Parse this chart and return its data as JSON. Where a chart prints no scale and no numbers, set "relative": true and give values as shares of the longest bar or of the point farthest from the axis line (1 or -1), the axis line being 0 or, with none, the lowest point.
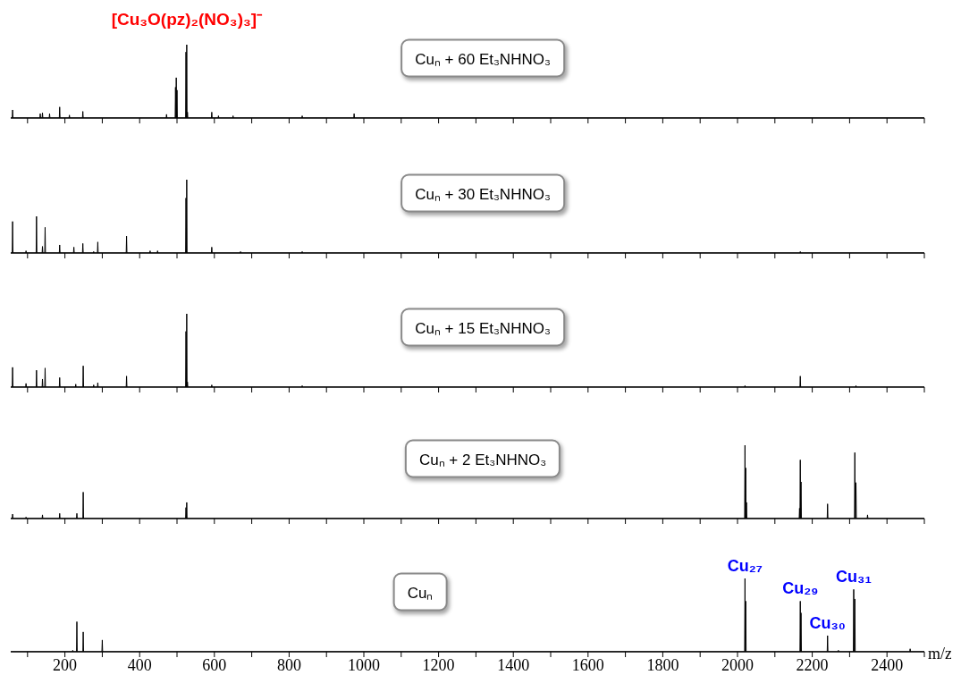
{
  "chart_data": [
    {
      "type": "line",
      "title": "Cuₙ + 60 Et₃NHNO₃",
      "color": "#000000",
      "relative": true,
      "tick_labels": false,
      "xlim": [
        55,
        2500
      ],
      "xticks": [
        100,
        200,
        300,
        400,
        500,
        600,
        700,
        800,
        900,
        1000,
        1100,
        1200,
        1300,
        1400,
        1500,
        1600,
        1700,
        1800,
        1900,
        2000,
        2100,
        2200,
        2300,
        2400,
        2500
      ],
      "annotations": [
        {
          "text": "[Cu₃O(pz)₂(NO₃)₃]⁻",
          "x": 526,
          "y": 1
        }
      ],
      "x": [
        55,
        59,
        60,
        61,
        133,
        134,
        135,
        139,
        140,
        141,
        158,
        159,
        160,
        185,
        186,
        187,
        211,
        212,
        213,
        247,
        248,
        249,
        471,
        472,
        473,
        495,
        496,
        497,
        498,
        499,
        500,
        501,
        523,
        524,
        525,
        526,
        527,
        528,
        529,
        592,
        593,
        594,
        610,
        611,
        612,
        649,
        650,
        651,
        834,
        835,
        836,
        973,
        974,
        975,
        2500
      ],
      "values": [
        0,
        0,
        0.11,
        0,
        0,
        0.06,
        0,
        0,
        0.07,
        0,
        0,
        0.06,
        0,
        0,
        0.15,
        0,
        0,
        0.04,
        0,
        0,
        0.09,
        0,
        0,
        0.05,
        0,
        0,
        0.42,
        0,
        0.55,
        0,
        0.38,
        0,
        0,
        0.9,
        0,
        1,
        0,
        0.08,
        0,
        0,
        0.08,
        0,
        0,
        0.03,
        0,
        0,
        0.03,
        0,
        0,
        0.03,
        0,
        0,
        0.06,
        0,
        0
      ]
    },
    {
      "type": "line",
      "title": "Cuₙ + 30 Et₃NHNO₃",
      "color": "#000000",
      "relative": true,
      "tick_labels": false,
      "xlim": [
        55,
        2500
      ],
      "xticks": [
        100,
        200,
        300,
        400,
        500,
        600,
        700,
        800,
        900,
        1000,
        1100,
        1200,
        1300,
        1400,
        1500,
        1600,
        1700,
        1800,
        1900,
        2000,
        2100,
        2200,
        2300,
        2400,
        2500
      ],
      "x": [
        55,
        59,
        60,
        61,
        95,
        96,
        97,
        123,
        124,
        125,
        139,
        140,
        141,
        146,
        147,
        148,
        185,
        186,
        187,
        223,
        224,
        225,
        247,
        248,
        249,
        276,
        277,
        278,
        287,
        288,
        289,
        364,
        365,
        366,
        427,
        428,
        429,
        447,
        448,
        449,
        523,
        524,
        525,
        526,
        527,
        592,
        593,
        594,
        669,
        670,
        671,
        834,
        835,
        836,
        2167,
        2168,
        2169,
        2500
      ],
      "values": [
        0,
        0,
        0.43,
        0,
        0,
        0.03,
        0,
        0,
        0.5,
        0,
        0,
        0.09,
        0,
        0,
        0.35,
        0,
        0,
        0.11,
        0,
        0,
        0.08,
        0,
        0,
        0.13,
        0,
        0,
        0.02,
        0,
        0,
        0.15,
        0,
        0,
        0.23,
        0,
        0,
        0.03,
        0,
        0,
        0.03,
        0,
        0,
        0.75,
        0,
        1,
        0,
        0,
        0.08,
        0,
        0,
        0.02,
        0,
        0,
        0.02,
        0,
        0,
        0.02,
        0,
        0
      ]
    },
    {
      "type": "line",
      "title": "Cuₙ + 15 Et₃NHNO₃",
      "color": "#000000",
      "relative": true,
      "tick_labels": false,
      "xlim": [
        55,
        2500
      ],
      "xticks": [
        100,
        200,
        300,
        400,
        500,
        600,
        700,
        800,
        900,
        1000,
        1100,
        1200,
        1300,
        1400,
        1500,
        1600,
        1700,
        1800,
        1900,
        2000,
        2100,
        2200,
        2300,
        2400,
        2500
      ],
      "x": [
        55,
        59,
        60,
        61,
        95,
        96,
        97,
        123,
        124,
        125,
        139,
        140,
        141,
        146,
        147,
        148,
        185,
        186,
        187,
        228,
        229,
        230,
        248,
        249,
        250,
        276,
        277,
        278,
        287,
        288,
        289,
        364,
        365,
        366,
        523,
        524,
        525,
        526,
        527,
        528,
        529,
        592,
        593,
        594,
        834,
        835,
        836,
        2019,
        2020,
        2021,
        2167,
        2168,
        2169,
        2316,
        2317,
        2318,
        2500
      ],
      "values": [
        0,
        0,
        0.27,
        0,
        0,
        0.05,
        0,
        0,
        0.23,
        0,
        0,
        0.11,
        0,
        0,
        0.26,
        0,
        0,
        0.13,
        0,
        0,
        0.04,
        0,
        0,
        0.29,
        0,
        0,
        0.03,
        0,
        0,
        0.06,
        0,
        0,
        0.15,
        0,
        0,
        0.76,
        0,
        1,
        0,
        0.07,
        0,
        0,
        0.03,
        0,
        0,
        0.02,
        0,
        0,
        0.02,
        0,
        0,
        0.15,
        0,
        0,
        0.02,
        0,
        0
      ]
    },
    {
      "type": "line",
      "title": "Cuₙ + 2 Et₃NHNO₃",
      "color": "#000000",
      "relative": true,
      "tick_labels": false,
      "xlim": [
        55,
        2500
      ],
      "xticks": [
        100,
        200,
        300,
        400,
        500,
        600,
        700,
        800,
        900,
        1000,
        1100,
        1200,
        1300,
        1400,
        1500,
        1600,
        1700,
        1800,
        1900,
        2000,
        2100,
        2200,
        2300,
        2400,
        2500
      ],
      "x": [
        55,
        59,
        60,
        61,
        95,
        96,
        97,
        139,
        140,
        141,
        185,
        186,
        187,
        231,
        232,
        233,
        248,
        249,
        250,
        523,
        524,
        525,
        526,
        527,
        2019,
        2020,
        2021,
        2022,
        2023,
        2024,
        2025,
        2165,
        2166,
        2167,
        2168,
        2169,
        2170,
        2171,
        2240,
        2241,
        2242,
        2313,
        2314,
        2315,
        2316,
        2317,
        2318,
        2347,
        2348,
        2349,
        2500
      ],
      "values": [
        0,
        0,
        0.06,
        0,
        0,
        0.02,
        0,
        0,
        0.05,
        0,
        0,
        0.07,
        0,
        0,
        0.07,
        0,
        0,
        0.36,
        0,
        0,
        0.15,
        0,
        0.22,
        0,
        0,
        1,
        0,
        0.69,
        0,
        0.22,
        0,
        0,
        0.14,
        0,
        0.8,
        0,
        0.5,
        0,
        0,
        0.2,
        0,
        0,
        0.9,
        0,
        0,
        0.49,
        0,
        0,
        0.05,
        0,
        0
      ]
    },
    {
      "type": "line",
      "title": "Cuₙ",
      "color": "#000000",
      "relative": true,
      "xlabel": "m/z",
      "xlim": [
        55,
        2500
      ],
      "xticks": [
        {
          "value": 100,
          "label": null
        },
        200,
        {
          "value": 300,
          "label": null
        },
        400,
        {
          "value": 500,
          "label": null
        },
        600,
        {
          "value": 700,
          "label": null
        },
        800,
        {
          "value": 900,
          "label": null
        },
        1000,
        {
          "value": 1100,
          "label": null
        },
        1200,
        {
          "value": 1300,
          "label": null
        },
        1400,
        {
          "value": 1500,
          "label": null
        },
        1600,
        {
          "value": 1700,
          "label": null
        },
        1800,
        {
          "value": 1900,
          "label": null
        },
        2000,
        {
          "value": 2100,
          "label": null
        },
        2200,
        {
          "value": 2300,
          "label": null
        },
        2400,
        {
          "value": 2500,
          "label": null
        }
      ],
      "annotations": [
        {
          "text": "Cu₂₇",
          "x": 2020,
          "y": 1
        },
        {
          "text": "Cu₂₉",
          "x": 2168,
          "y": 0.69
        },
        {
          "text": "Cu₃₀",
          "x": 2241,
          "y": 0.22
        },
        {
          "text": "Cu₃₁",
          "x": 2311,
          "y": 0.85
        }
      ],
      "x": [
        55,
        220,
        221,
        222,
        231,
        232,
        233,
        248,
        249,
        250,
        299,
        300,
        301,
        2019,
        2020,
        2021,
        2022,
        2023,
        2167,
        2168,
        2169,
        2170,
        2171,
        2240,
        2241,
        2242,
        2269,
        2270,
        2271,
        2310,
        2311,
        2312,
        2313,
        2314,
        2315,
        2461,
        2462,
        2463,
        2500
      ],
      "values": [
        0,
        0,
        0.02,
        0,
        0,
        0.41,
        0,
        0,
        0.27,
        0,
        0,
        0.16,
        0,
        0,
        1,
        0,
        0.69,
        0,
        0,
        0.69,
        0,
        0.53,
        0,
        0,
        0.22,
        0,
        0,
        0.02,
        0,
        0,
        0.85,
        0,
        0,
        0.72,
        0,
        0,
        0.04,
        0,
        0
      ]
    }
  ]
}
